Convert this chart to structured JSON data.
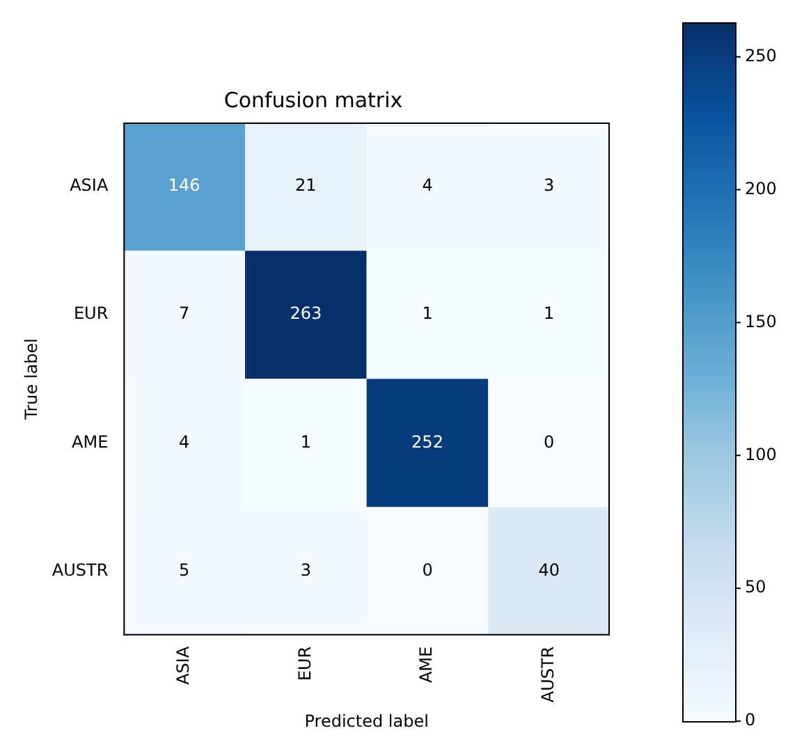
{
  "chart_data": {
    "type": "heatmap",
    "title": "Confusion matrix",
    "xlabel": "Predicted label",
    "ylabel": "True label",
    "categories": [
      "ASIA",
      "EUR",
      "AME",
      "AUSTR"
    ],
    "y_categories": [
      "ASIA",
      "EUR",
      "AME",
      "AUSTR"
    ],
    "cells": [
      [
        146,
        21,
        4,
        3
      ],
      [
        7,
        263,
        1,
        1
      ],
      [
        4,
        1,
        252,
        0
      ],
      [
        5,
        3,
        0,
        40
      ]
    ],
    "data_labels": true,
    "clim": [
      0,
      263
    ],
    "cticks": [
      0,
      50,
      100,
      150,
      200,
      250
    ]
  }
}
